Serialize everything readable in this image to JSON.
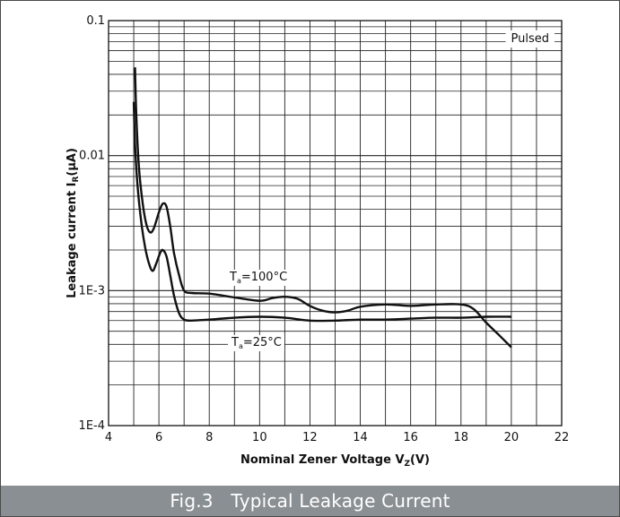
{
  "caption": {
    "figure_label": "Fig.3",
    "title": "Typical Leakage Current"
  },
  "chart_data": {
    "type": "line",
    "xlabel": {
      "main": "Nominal Zener Voltage  V",
      "sub": "Z",
      "unit": "(V)"
    },
    "ylabel": {
      "main": "Leakage current  I",
      "sub": "R",
      "unit": "(μA)"
    },
    "xlim": [
      4,
      22
    ],
    "ylim": [
      0.0001,
      0.1
    ],
    "y_scale": "log",
    "grid": true,
    "x_ticks": [
      4,
      6,
      8,
      10,
      12,
      14,
      16,
      18,
      20,
      22
    ],
    "y_ticks": [
      {
        "value": 0.1,
        "label": "0.1"
      },
      {
        "value": 0.01,
        "label": "0.01"
      },
      {
        "value": 0.001,
        "label": "1E-3"
      },
      {
        "value": 0.0001,
        "label": "1E-4"
      }
    ],
    "legend_box": {
      "text": "Pulsed",
      "placement": "top-right"
    },
    "series": [
      {
        "name": "Ta=100°C",
        "label": {
          "prefix": "T",
          "sub": "a",
          "suffix": "=100°C"
        },
        "x": [
          5.05,
          5.1,
          5.2,
          5.35,
          5.5,
          5.65,
          5.8,
          6.0,
          6.15,
          6.3,
          6.45,
          6.6,
          6.8,
          7.0,
          7.3,
          8.0,
          9.0,
          10.0,
          10.5,
          11.0,
          11.5,
          12.0,
          12.5,
          13.0,
          13.5,
          14.0,
          15.0,
          16.0,
          17.0,
          18.0,
          18.5,
          19.0,
          19.5,
          20.0
        ],
        "y": [
          0.045,
          0.02,
          0.0085,
          0.0045,
          0.0031,
          0.0027,
          0.0029,
          0.0038,
          0.0044,
          0.0042,
          0.003,
          0.0019,
          0.0013,
          0.001,
          0.00096,
          0.00095,
          0.00089,
          0.00084,
          0.00088,
          0.0009,
          0.00087,
          0.00077,
          0.00071,
          0.00069,
          0.00071,
          0.00076,
          0.00079,
          0.00077,
          0.00079,
          0.00079,
          0.00073,
          0.00058,
          0.00047,
          0.00038
        ]
      },
      {
        "name": "Ta=25°C",
        "label": {
          "prefix": "T",
          "sub": "a",
          "suffix": "=25°C"
        },
        "x": [
          5.0,
          5.05,
          5.15,
          5.3,
          5.45,
          5.6,
          5.75,
          5.9,
          6.05,
          6.15,
          6.3,
          6.45,
          6.6,
          6.8,
          7.0,
          7.3,
          8.0,
          9.0,
          10.0,
          11.0,
          12.0,
          13.0,
          14.0,
          15.0,
          16.0,
          17.0,
          18.0,
          19.0,
          20.0
        ],
        "y": [
          0.025,
          0.012,
          0.006,
          0.0032,
          0.0021,
          0.0016,
          0.0014,
          0.0016,
          0.0019,
          0.002,
          0.0018,
          0.0013,
          0.00092,
          0.00068,
          0.00061,
          0.0006,
          0.00061,
          0.00063,
          0.00064,
          0.00063,
          0.0006,
          0.0006,
          0.00061,
          0.00061,
          0.00062,
          0.00063,
          0.00063,
          0.00064,
          0.00064
        ]
      }
    ]
  }
}
